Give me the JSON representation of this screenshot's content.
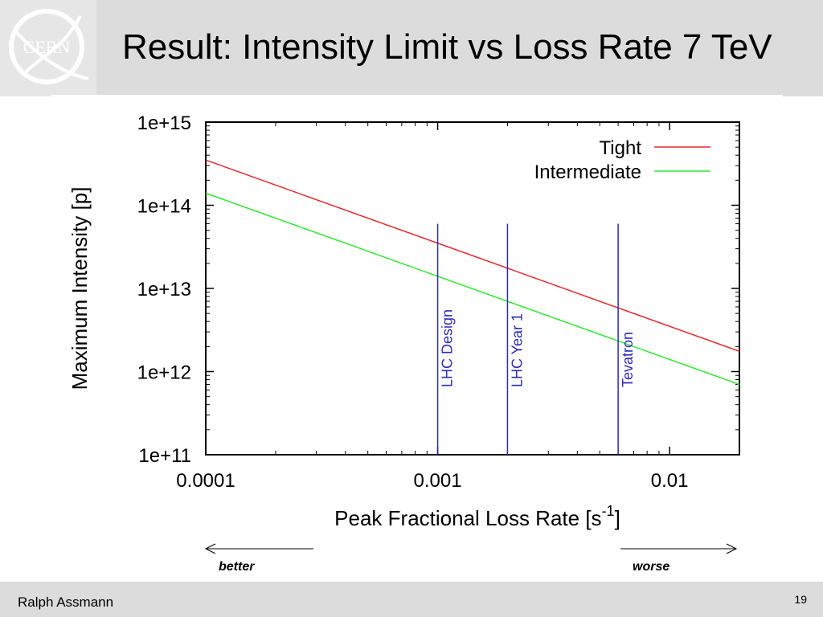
{
  "slide": {
    "title": "Result: Intensity Limit vs Loss Rate 7 TeV",
    "logo_text": "CERN",
    "author": "Ralph Assmann",
    "page_number": "19",
    "better_label": "better",
    "worse_label": "worse"
  },
  "chart_data": {
    "type": "line",
    "title": "",
    "xlabel": "Peak Fractional Loss Rate [s",
    "xlabel_sup": "-1",
    "xlabel_end": "]",
    "ylabel": "Maximum Intensity [p]",
    "xscale": "log",
    "yscale": "log",
    "xlim": [
      0.0001,
      0.02
    ],
    "ylim": [
      100000000000.0,
      1000000000000000.0
    ],
    "x_ticks": [
      0.0001,
      0.001,
      0.01
    ],
    "x_tick_labels": [
      "0.0001",
      "0.001",
      "0.01"
    ],
    "y_ticks": [
      100000000000.0,
      1000000000000.0,
      10000000000000.0,
      100000000000000.0,
      1000000000000000.0
    ],
    "y_tick_labels": [
      "1e+11",
      "1e+12",
      "1e+13",
      "1e+14",
      "1e+15"
    ],
    "grid": false,
    "legend_position": "top-right",
    "series": [
      {
        "name": "Tight",
        "color": "#e8282a",
        "x": [
          0.0001,
          0.02
        ],
        "y": [
          350000000000000.0,
          1750000000000.0
        ]
      },
      {
        "name": "Intermediate",
        "color": "#2ee82e",
        "x": [
          0.0001,
          0.02
        ],
        "y": [
          140000000000000.0,
          700000000000.0
        ]
      }
    ],
    "vlines": [
      {
        "label": "LHC Design",
        "x": 0.001,
        "color": "#2b2bb8"
      },
      {
        "label": "LHC Year 1",
        "x": 0.002,
        "color": "#2b2bb8"
      },
      {
        "label": "Tevatron",
        "x": 0.006,
        "color": "#2b2bb8"
      }
    ],
    "vline_y_range": [
      100000000000.0,
      60000000000000.0
    ]
  }
}
